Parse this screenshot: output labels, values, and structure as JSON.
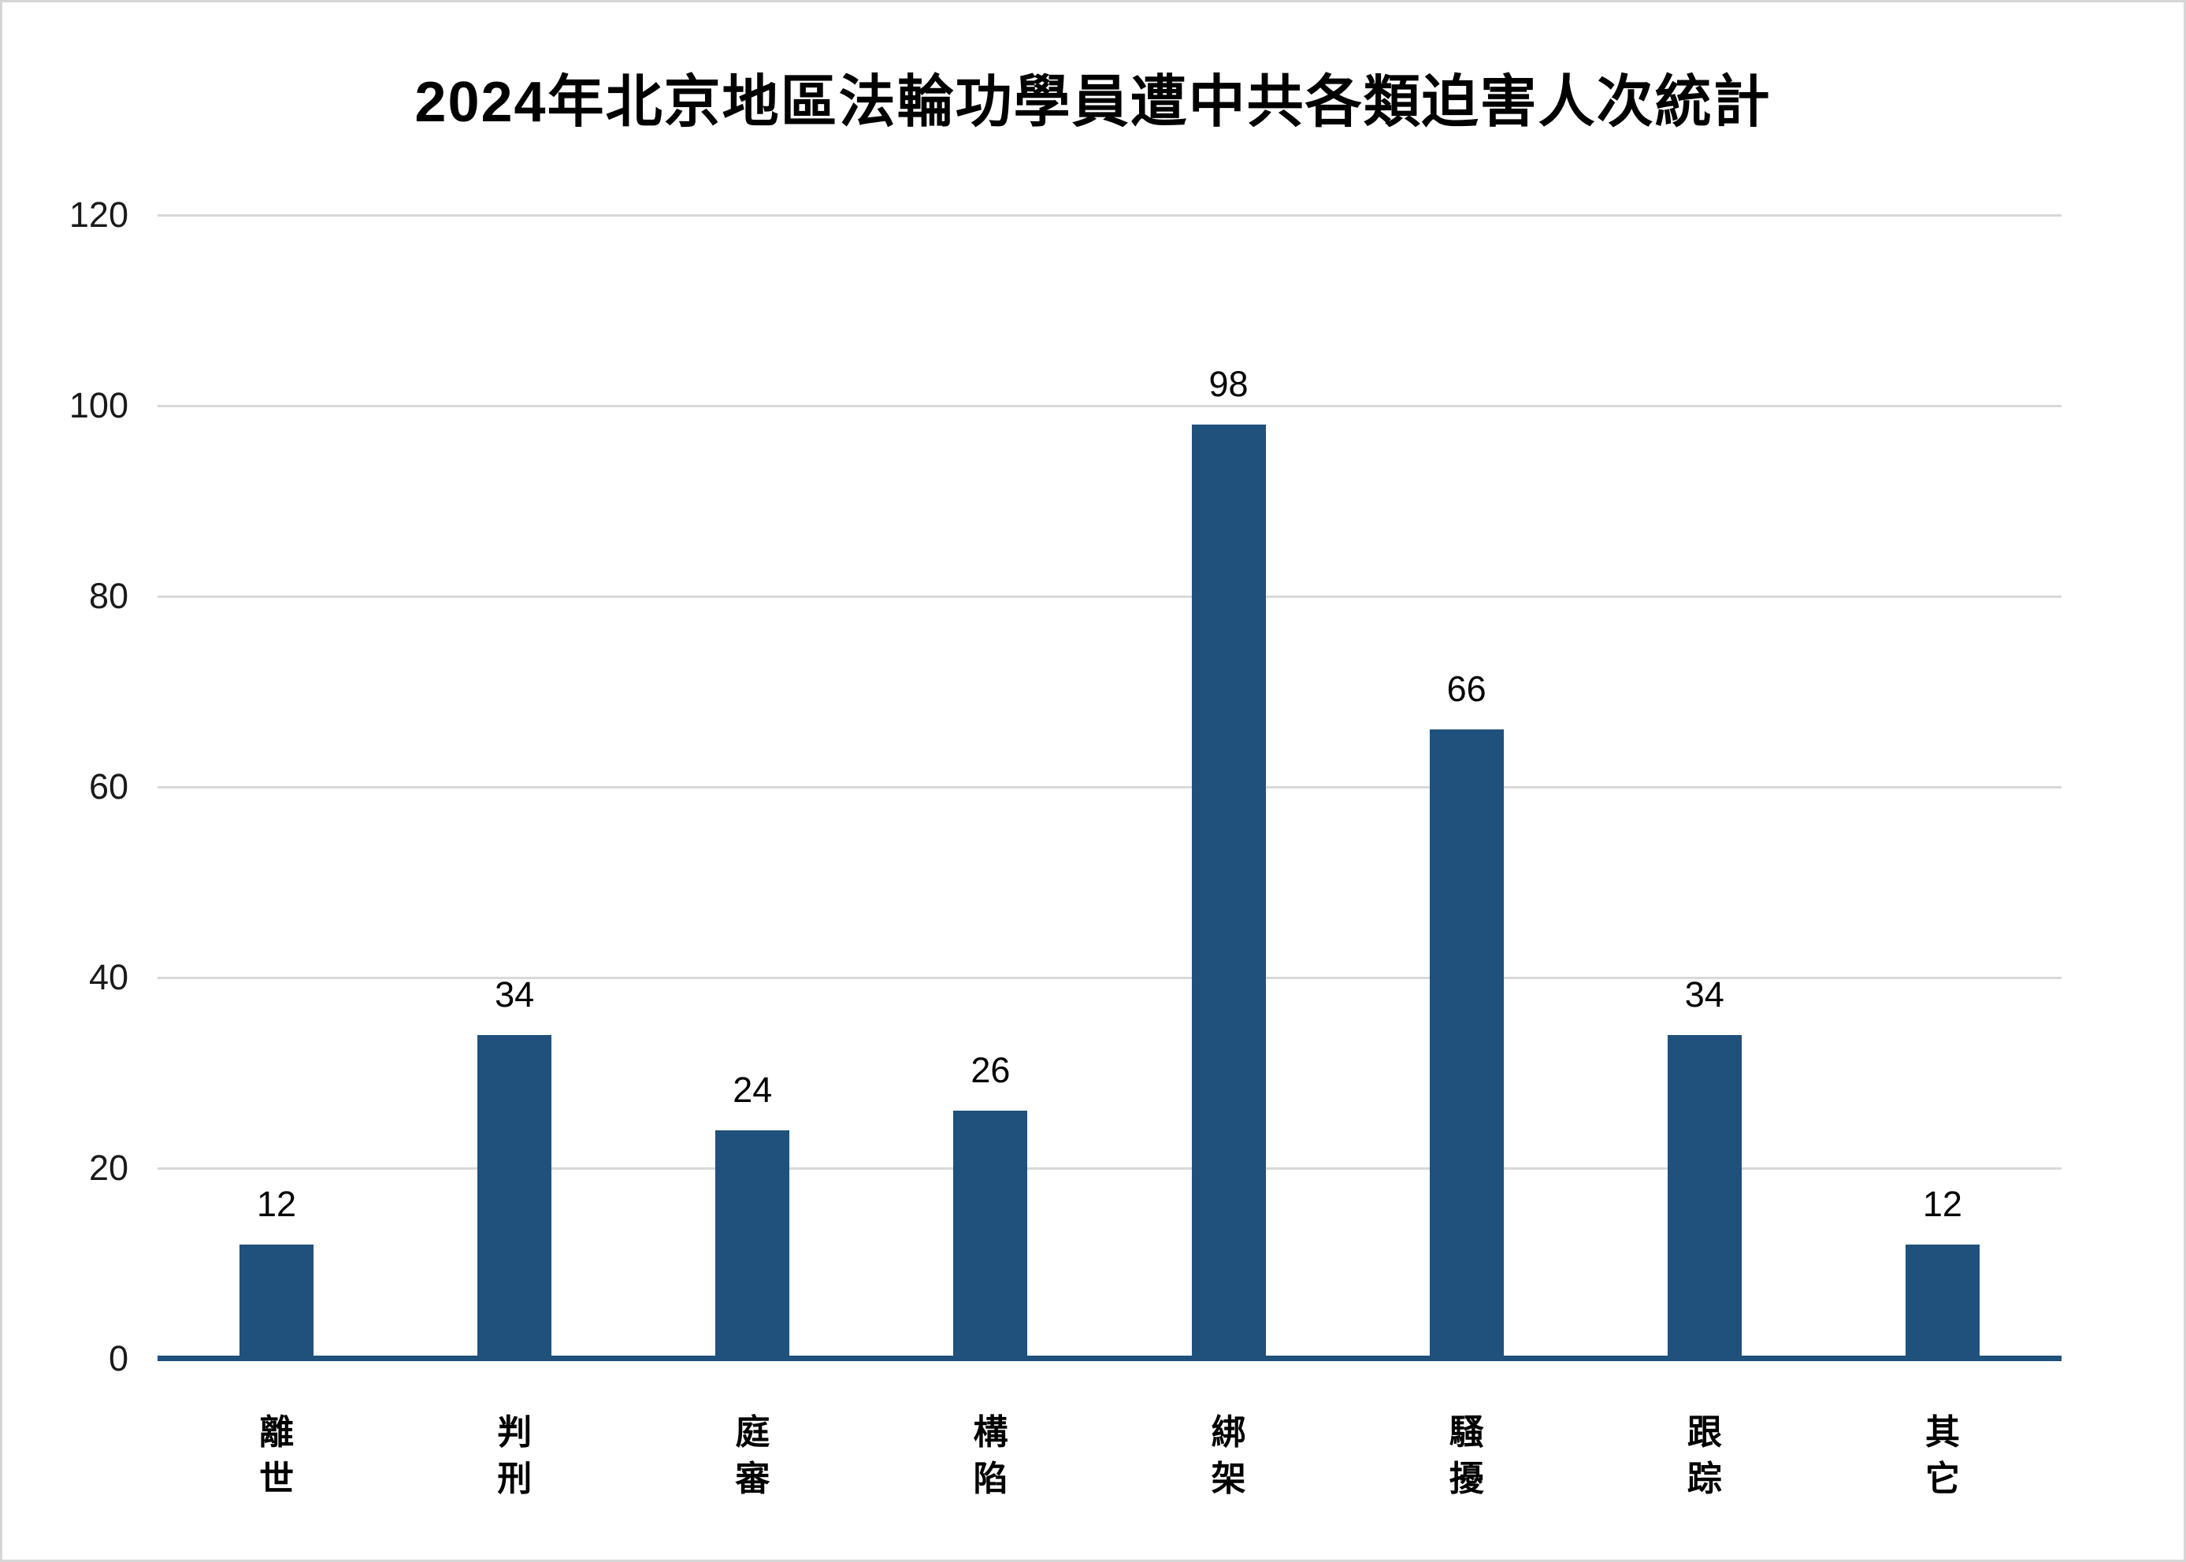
{
  "chart_data": {
    "type": "bar",
    "title": "2024年北京地區法輪功學員遭中共各類迫害人次統計",
    "categories": [
      "離世",
      "判刑",
      "庭審",
      "構陷",
      "綁架",
      "騷擾",
      "跟踪",
      "其它"
    ],
    "values": [
      12,
      34,
      24,
      26,
      98,
      66,
      34,
      12
    ],
    "y_ticks": [
      0,
      20,
      40,
      60,
      80,
      100,
      120
    ],
    "ylim": [
      0,
      120
    ],
    "xlabel": "",
    "ylabel": "",
    "grid": "horizontal",
    "legend_position": "none",
    "colors": {
      "bar": "#1F517C",
      "axis_line": "#1F517C",
      "gridline": "#D9D9D9",
      "page_border": "#D6D6D6",
      "tick_label": "#1a1a1a",
      "value_label": "#000000",
      "title": "#000000",
      "background": "#FFFFFF"
    }
  }
}
